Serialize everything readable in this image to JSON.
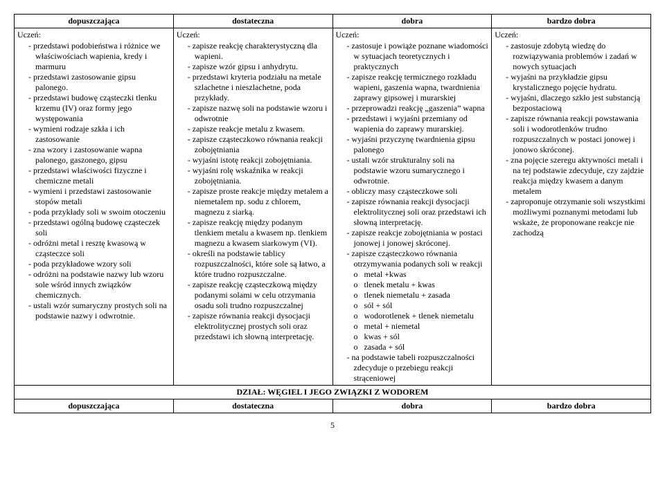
{
  "headers": [
    "dopuszczająca",
    "dostateczna",
    "dobra",
    "bardzo dobra"
  ],
  "uczen": "Uczeń:",
  "col1": [
    "przedstawi podobieństwa i różnice we właściwościach wapienia, kredy i marmuru",
    "przedstawi zastosowanie gipsu palonego.",
    "przedstawi budowę cząsteczki tlenku krzemu (IV) oraz  formy jego występowania",
    "wymieni rodzaje szkła i ich zastosowanie",
    "zna wzory i zastosowanie wapna palonego, gaszonego, gipsu",
    "przedstawi właściwości fizyczne i chemiczne metali",
    "wymieni i przedstawi zastosowanie stopów metali",
    "poda przykłady soli w swoim otoczeniu",
    "przedstawi ogólną budowę cząsteczek soli",
    "odróżni metal i resztę kwasową w cząsteczce soli",
    "poda przykładowe wzory soli",
    "odróżni na podstawie nazwy lub wzoru sole wśród innych związków chemicznych.",
    "ustali wzór sumaryczny prostych soli na podstawie nazwy i odwrotnie."
  ],
  "col2": [
    "zapisze reakcję charakterystyczną dla wapieni.",
    "zapisze wzór gipsu i anhydrytu.",
    "przedstawi kryteria podziału na metale szlachetne i nieszlachetne, poda przykłady.",
    "zapisze nazwę soli na podstawie wzoru i odwrotnie",
    "zapisze reakcje metalu z kwasem.",
    "zapisze cząsteczkowo równania reakcji zobojętniania",
    "wyjaśni istotę reakcji zobojętniania.",
    "wyjaśni rolę wskaźnika w reakcji zobojętniania.",
    "zapisze proste reakcje między metalem a niemetalem np. sodu z chlorem, magnezu z siarką.",
    "zapisze reakcję między podanym tlenkiem metalu a kwasem np. tlenkiem magnezu a kwasem siarkowym (VI).",
    "określi na podstawie tablicy rozpuszczalności, które sole są łatwo, a które trudno rozpuszczalne.",
    "zapisze reakcję cząsteczkową między podanymi solami w celu otrzymania osadu soli trudno rozpuszczalnej",
    "zapisze równania reakcji dysocjacji elektrolitycznej prostych soli oraz przedstawi ich słowną interpretację."
  ],
  "col3": [
    "zastosuje i powiąże poznane wiadomości w sytuacjach teoretycznych i praktycznych",
    "zapisze reakcję termicznego rozkładu wapieni, gaszenia wapna, twardnienia zaprawy gipsowej i murarskiej",
    "przeprowadzi reakcję „gaszenia” wapna",
    "przedstawi i wyjaśni przemiany od wapienia do zaprawy murarskiej.",
    "wyjaśni przyczynę twardnienia gipsu palonego",
    "ustali wzór strukturalny soli na podstawie wzoru sumarycznego i odwrotnie.",
    "obliczy masy cząsteczkowe soli",
    "zapisze równania reakcji dysocjacji elektrolitycznej soli oraz przedstawi ich słowną interpretację.",
    "zapisze reakcje zobojętniania w postaci jonowej i jonowej skróconej.",
    "zapisze cząsteczkowo równania otrzymywania podanych  soli w reakcji"
  ],
  "col3_sub": [
    "metal +kwas",
    "tlenek metalu + kwas",
    "tlenek niemetalu + zasada",
    "sól + sól",
    "wodorotlenek + tlenek niemetalu",
    "metal + niemetal",
    "kwas + sól",
    "zasada + sól"
  ],
  "col3_after": [
    "na podstawie tabeli rozpuszczalności zdecyduje o przebiegu reakcji strąceniowej"
  ],
  "col4": [
    "zastosuje zdobytą wiedzę do rozwiązywania problemów i zadań w nowych sytuacjach",
    "wyjaśni na przykładzie gipsu krystalicznego pojęcie hydratu.",
    "wyjaśni, dlaczego szkło jest substancją bezpostaciową",
    "zapisze równania reakcji powstawania soli i wodorotlenków trudno rozpuszczalnych w postaci jonowej i jonowo skróconej.",
    "zna pojęcie szeregu aktywności metali i na tej podstawie zdecyduje, czy zajdzie reakcja między kwasem a danym metalem",
    "zaproponuje otrzymanie soli wszystkimi możliwymi poznanymi metodami lub wskaże, że proponowane reakcje nie zachodzą"
  ],
  "section": "DZIAŁ: WĘGIEL I JEGO ZWIĄZKI Z WODOREM",
  "page": "5"
}
